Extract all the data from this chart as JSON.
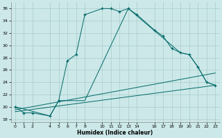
{
  "xlabel": "Humidex (Indice chaleur)",
  "bg_color": "#cce8e8",
  "line_color": "#006868",
  "grid_color": "#aacccc",
  "xlim": [
    -0.5,
    23.5
  ],
  "ylim": [
    17.5,
    37.0
  ],
  "xtick_positions": [
    0,
    1,
    2,
    4,
    5,
    6,
    7,
    8,
    10,
    11,
    12,
    13,
    14,
    16,
    17,
    18,
    19,
    20,
    21,
    22,
    23
  ],
  "xtick_labels": [
    "0",
    "1",
    "2",
    "4",
    "5",
    "6",
    "7",
    "8",
    "10",
    "11",
    "12",
    "13",
    "14",
    "16",
    "17",
    "18",
    "19",
    "20",
    "21",
    "22",
    "23"
  ],
  "ytick_positions": [
    18,
    20,
    22,
    24,
    26,
    28,
    30,
    32,
    34,
    36
  ],
  "ytick_labels": [
    "18",
    "20",
    "22",
    "24",
    "26",
    "28",
    "30",
    "32",
    "34",
    "36"
  ],
  "series": [
    {
      "x": [
        0,
        1,
        2,
        4,
        5,
        6,
        7,
        8,
        10,
        11,
        12,
        13,
        14,
        16,
        17,
        18,
        19,
        20,
        21,
        22,
        23
      ],
      "y": [
        20.0,
        19.0,
        19.0,
        18.5,
        21.0,
        27.5,
        28.5,
        35.0,
        36.0,
        36.0,
        35.5,
        36.0,
        35.0,
        32.5,
        31.5,
        29.5,
        28.8,
        28.5,
        26.5,
        24.0,
        23.5
      ],
      "marker": true
    },
    {
      "x": [
        0,
        4,
        5,
        8,
        13,
        19,
        20,
        21,
        22,
        23
      ],
      "y": [
        20.0,
        18.5,
        21.0,
        21.0,
        36.0,
        28.8,
        28.5,
        26.5,
        24.0,
        23.5
      ],
      "marker": false
    },
    {
      "x": [
        0,
        23
      ],
      "y": [
        19.5,
        25.5
      ],
      "marker": false
    },
    {
      "x": [
        0,
        23
      ],
      "y": [
        19.2,
        23.5
      ],
      "marker": false
    }
  ]
}
